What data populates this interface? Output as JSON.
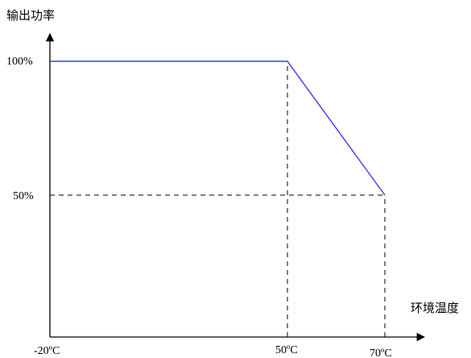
{
  "chart_data": {
    "type": "line",
    "ylabel": "输出功率",
    "xlabel": "环境温度",
    "x_ticks": [
      "-20ºC",
      "50ºC",
      "70ºC"
    ],
    "y_ticks": [
      "100%",
      "50%"
    ],
    "series": [
      {
        "x": [
          -20,
          50,
          70
        ],
        "y": [
          100,
          100,
          50
        ],
        "color": "#3a3af0"
      }
    ],
    "guide_lines": [
      {
        "type": "vertical",
        "x": 50,
        "y_from": 0,
        "y_to": 100
      },
      {
        "type": "vertical",
        "x": 70,
        "y_from": 0,
        "y_to": 50
      },
      {
        "type": "horizontal",
        "y": 50,
        "x_from": -20,
        "x_to": 70
      }
    ],
    "grid": false,
    "axis_color": "#000000",
    "guide_color": "#000000"
  }
}
